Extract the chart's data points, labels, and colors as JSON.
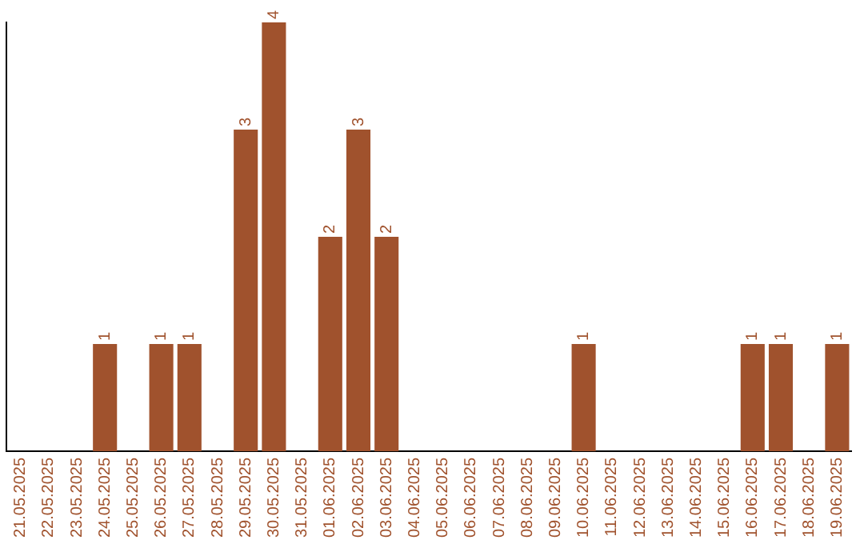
{
  "chart_data": {
    "type": "bar",
    "categories": [
      "21.05.2025",
      "22.05.2025",
      "23.05.2025",
      "24.05.2025",
      "25.05.2025",
      "26.05.2025",
      "27.05.2025",
      "28.05.2025",
      "29.05.2025",
      "30.05.2025",
      "31.05.2025",
      "01.06.2025",
      "02.06.2025",
      "03.06.2025",
      "04.06.2025",
      "05.06.2025",
      "06.06.2025",
      "07.06.2025",
      "08.06.2025",
      "09.06.2025",
      "10.06.2025",
      "11.06.2025",
      "12.06.2025",
      "13.06.2025",
      "14.06.2025",
      "15.06.2025",
      "16.06.2025",
      "17.06.2025",
      "18.06.2025",
      "19.06.2025"
    ],
    "values": [
      0,
      0,
      0,
      1,
      0,
      1,
      1,
      0,
      3,
      4,
      0,
      2,
      3,
      2,
      0,
      0,
      0,
      0,
      0,
      0,
      1,
      0,
      0,
      0,
      0,
      0,
      1,
      1,
      0,
      1
    ],
    "value_labels": [
      null,
      null,
      null,
      "1",
      null,
      "1",
      "1",
      null,
      "3",
      "4",
      null,
      "2",
      "3",
      "2",
      null,
      null,
      null,
      null,
      null,
      null,
      "1",
      null,
      null,
      null,
      null,
      null,
      "1",
      "1",
      null,
      "1"
    ],
    "color": "#a0522d",
    "grid": false,
    "legend": false,
    "tick_labels": "x"
  }
}
